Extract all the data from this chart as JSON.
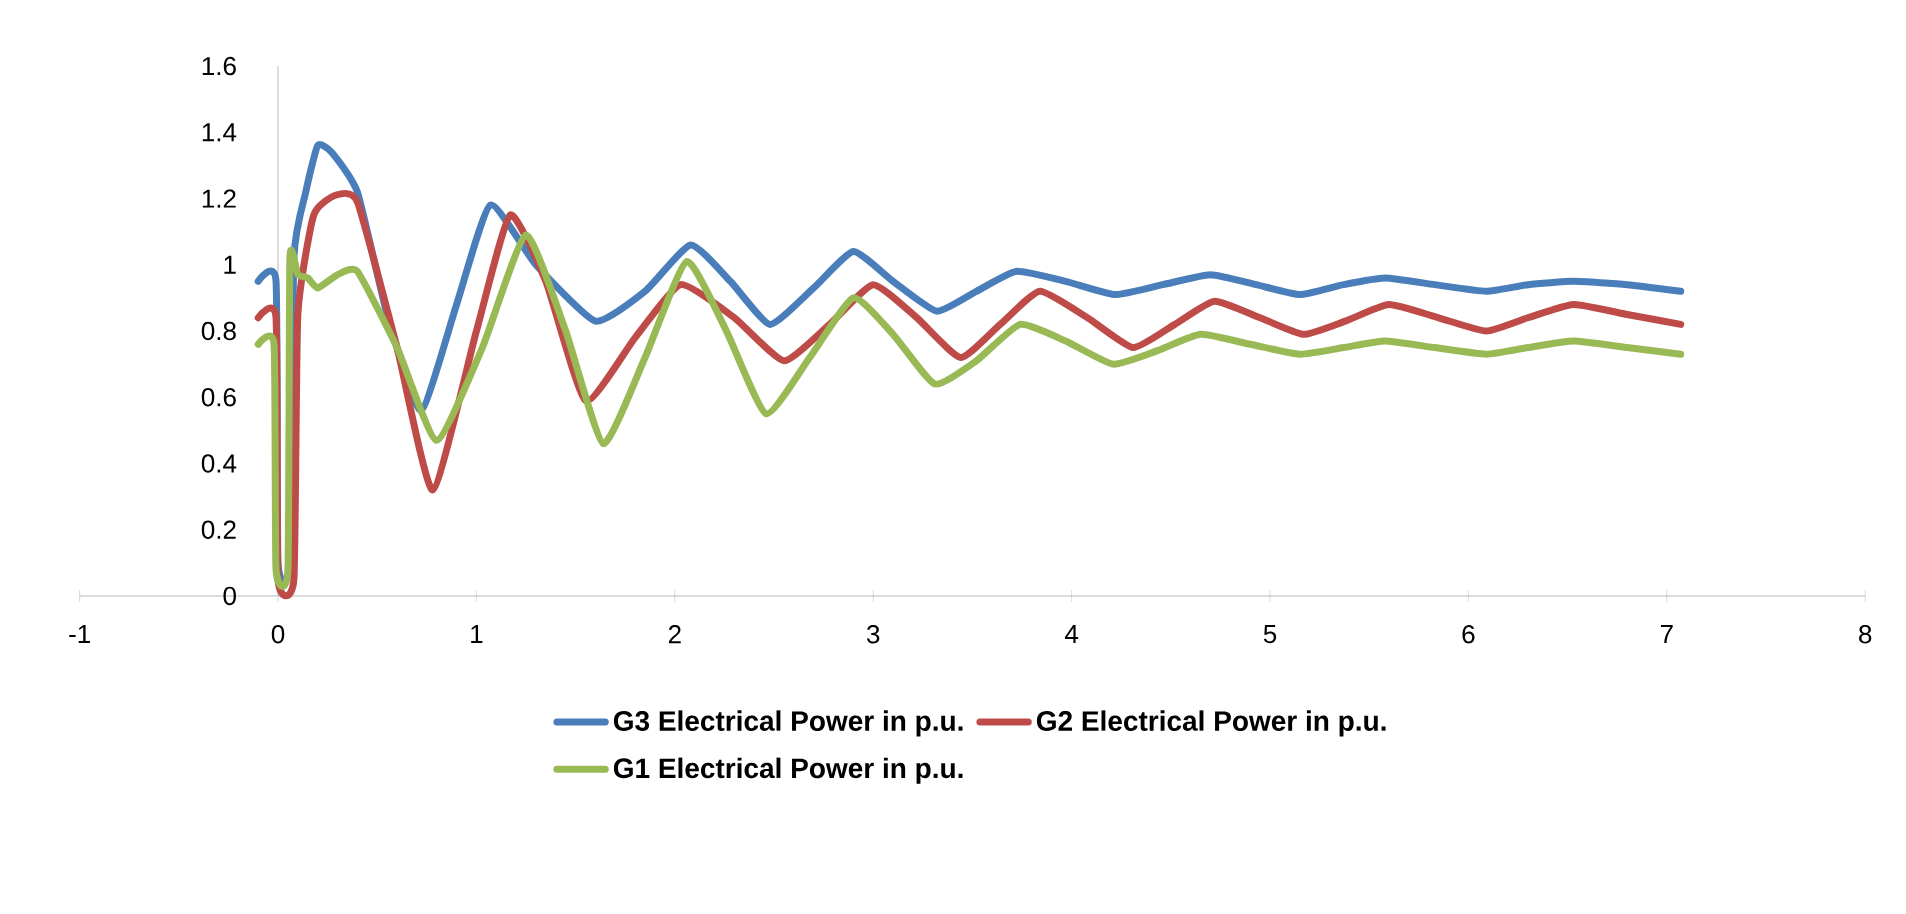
{
  "chart_data": {
    "type": "line",
    "xlim": [
      -1,
      8
    ],
    "xticks": [
      -1,
      0,
      1,
      2,
      3,
      4,
      5,
      6,
      7,
      8
    ],
    "ylim": [
      0,
      1.6
    ],
    "yticks": [
      0,
      0.2,
      0.4,
      0.6,
      0.8,
      1,
      1.2,
      1.4,
      1.6
    ],
    "legend": "bottom",
    "marker": "none",
    "line_style": "solid",
    "grid": false,
    "series": [
      {
        "name": "G3 Electrical Power in p.u.",
        "color": "#4a7ebb",
        "x": [
          -0.1,
          -0.01,
          0,
          0.06,
          0.08,
          0.14,
          0.2,
          0.27,
          0.4,
          0.55,
          0.72,
          0.9,
          1.07,
          1.3,
          1.6,
          1.85,
          2.08,
          2.28,
          2.48,
          2.7,
          2.9,
          3.1,
          3.32,
          3.52,
          3.72,
          3.97,
          4.22,
          4.46,
          4.7,
          4.93,
          5.15,
          5.37,
          5.58,
          5.83,
          6.09,
          6.3,
          6.53,
          6.8,
          7.07
        ],
        "values": [
          0.95,
          0.95,
          0.1,
          0.1,
          1.02,
          1.22,
          1.36,
          1.34,
          1.22,
          0.85,
          0.56,
          0.88,
          1.18,
          1.0,
          0.83,
          0.92,
          1.06,
          0.95,
          0.82,
          0.93,
          1.04,
          0.95,
          0.86,
          0.92,
          0.98,
          0.95,
          0.91,
          0.94,
          0.97,
          0.94,
          0.91,
          0.94,
          0.96,
          0.94,
          0.92,
          0.94,
          0.95,
          0.94,
          0.92
        ]
      },
      {
        "name": "G2 Electrical Power in p.u.",
        "color": "#be4b48",
        "x": [
          -0.1,
          -0.01,
          0,
          0.08,
          0.1,
          0.18,
          0.29,
          0.4,
          0.6,
          0.78,
          1.0,
          1.17,
          1.35,
          1.55,
          1.8,
          2.03,
          2.3,
          2.55,
          2.78,
          3.0,
          3.22,
          3.44,
          3.64,
          3.84,
          4.08,
          4.31,
          4.52,
          4.72,
          4.95,
          5.17,
          5.38,
          5.6,
          5.85,
          6.09,
          6.3,
          6.53,
          6.8,
          7.07
        ],
        "values": [
          0.84,
          0.84,
          0.05,
          0.05,
          0.85,
          1.15,
          1.21,
          1.19,
          0.75,
          0.32,
          0.8,
          1.15,
          0.95,
          0.59,
          0.78,
          0.94,
          0.84,
          0.71,
          0.82,
          0.94,
          0.84,
          0.72,
          0.82,
          0.92,
          0.84,
          0.75,
          0.82,
          0.89,
          0.84,
          0.79,
          0.83,
          0.88,
          0.84,
          0.8,
          0.84,
          0.88,
          0.85,
          0.82
        ]
      },
      {
        "name": "G1 Electrical Power in p.u.",
        "color": "#98b954",
        "x": [
          -0.1,
          -0.02,
          -0.01,
          0.05,
          0.06,
          0.1,
          0.15,
          0.2,
          0.3,
          0.4,
          0.6,
          0.8,
          1.03,
          1.25,
          1.45,
          1.64,
          1.85,
          2.06,
          2.26,
          2.46,
          2.68,
          2.9,
          3.1,
          3.31,
          3.52,
          3.74,
          3.97,
          4.21,
          4.43,
          4.65,
          4.9,
          5.15,
          5.37,
          5.58,
          5.83,
          6.09,
          6.3,
          6.53,
          6.8,
          7.07
        ],
        "values": [
          0.76,
          0.76,
          0.08,
          0.08,
          1.02,
          0.97,
          0.96,
          0.93,
          0.97,
          0.98,
          0.75,
          0.47,
          0.75,
          1.09,
          0.8,
          0.46,
          0.72,
          1.01,
          0.8,
          0.55,
          0.72,
          0.9,
          0.79,
          0.64,
          0.71,
          0.82,
          0.77,
          0.7,
          0.74,
          0.79,
          0.76,
          0.73,
          0.75,
          0.77,
          0.75,
          0.73,
          0.75,
          0.77,
          0.75,
          0.73
        ]
      }
    ]
  }
}
